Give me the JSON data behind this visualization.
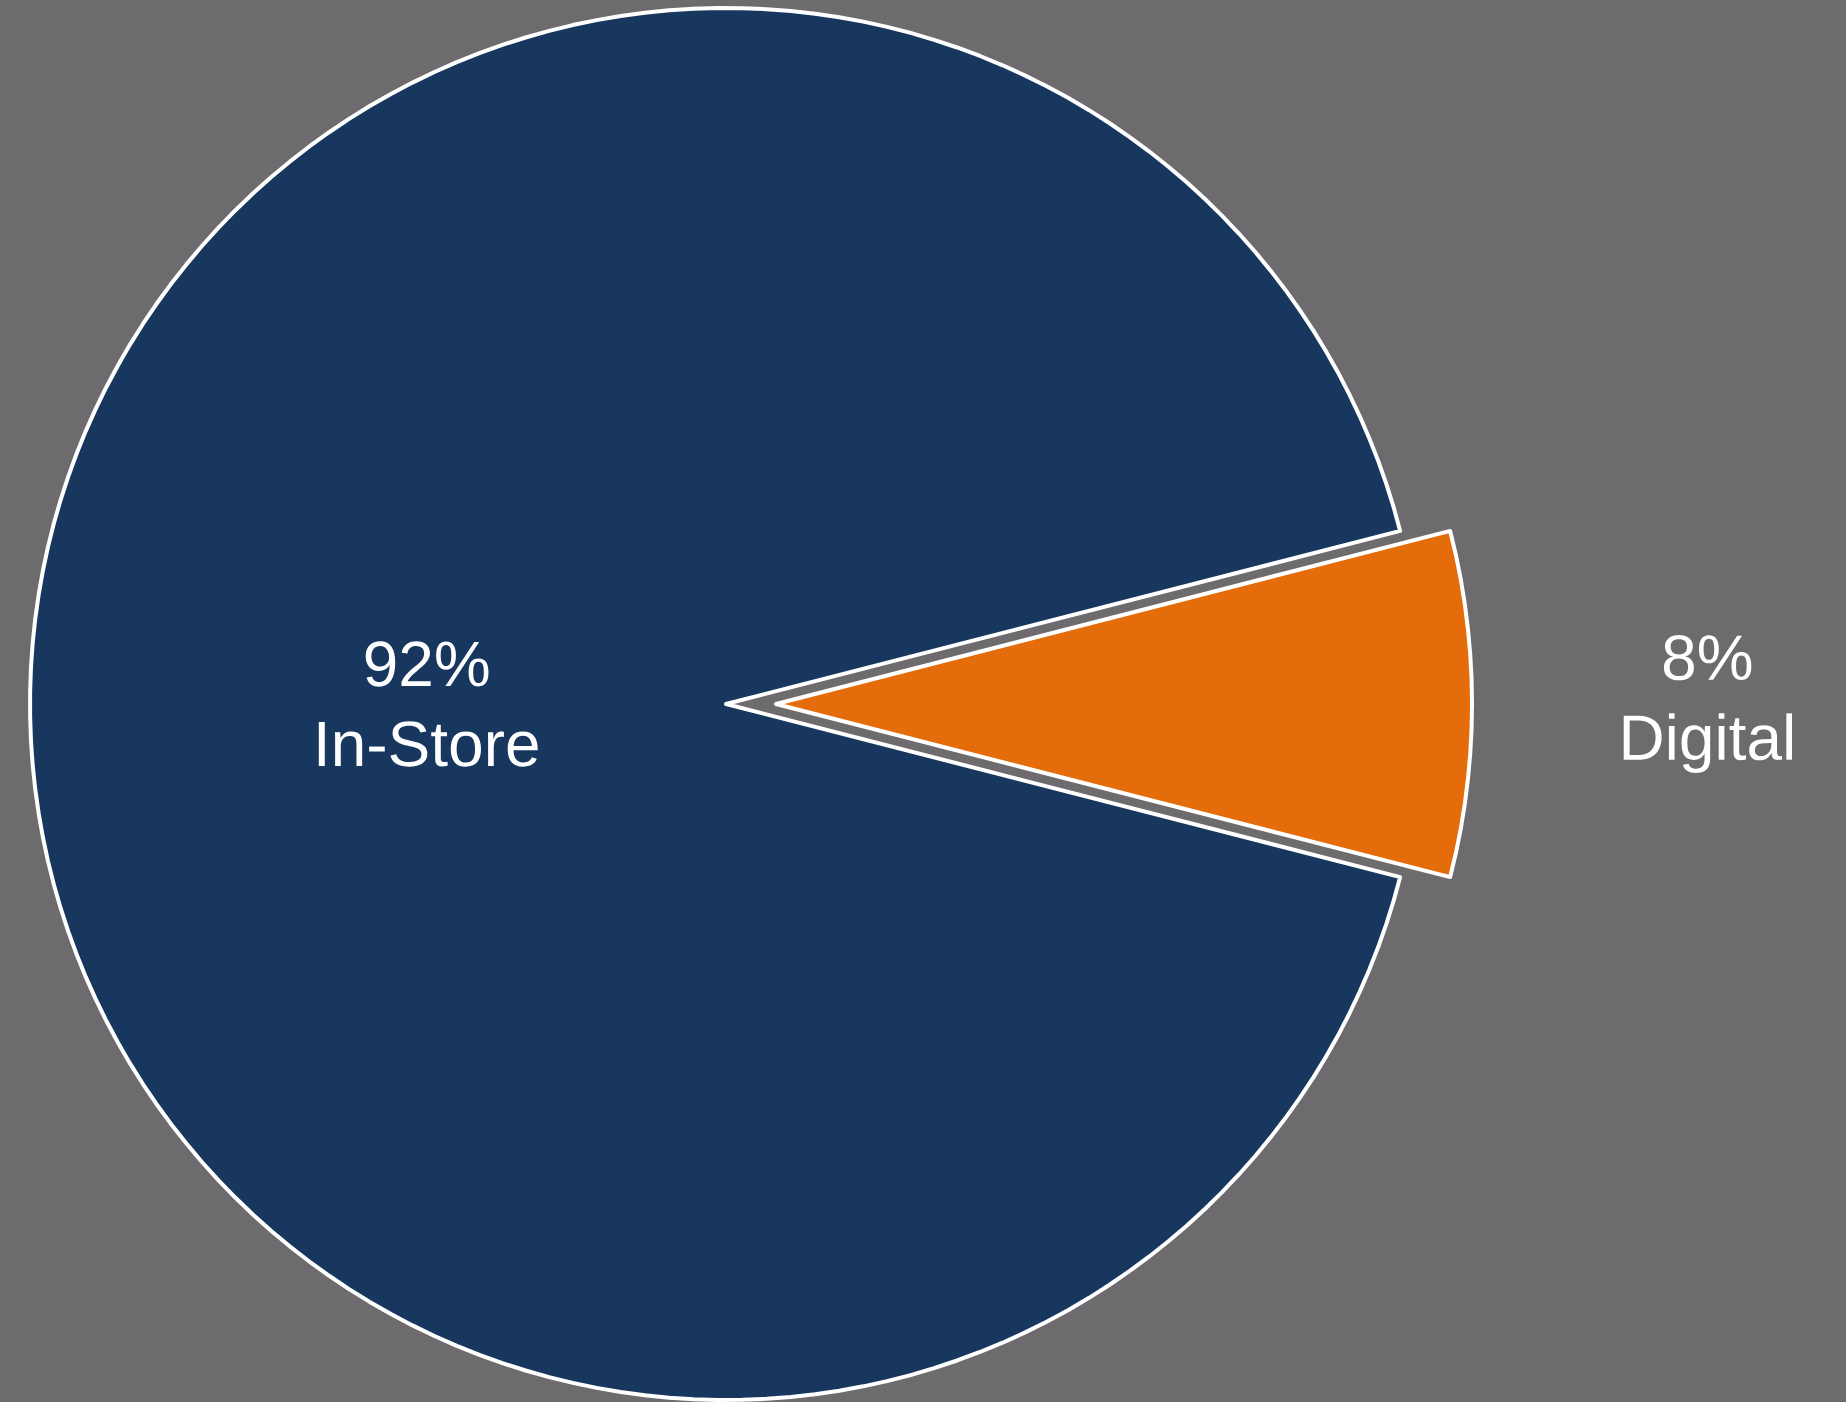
{
  "chart_data": {
    "type": "pie",
    "categories": [
      "In-Store",
      "Digital"
    ],
    "values": [
      92,
      8
    ],
    "colors": [
      "#17375e",
      "#e46c0a"
    ],
    "value_labels": [
      "92%",
      "8%"
    ]
  }
}
